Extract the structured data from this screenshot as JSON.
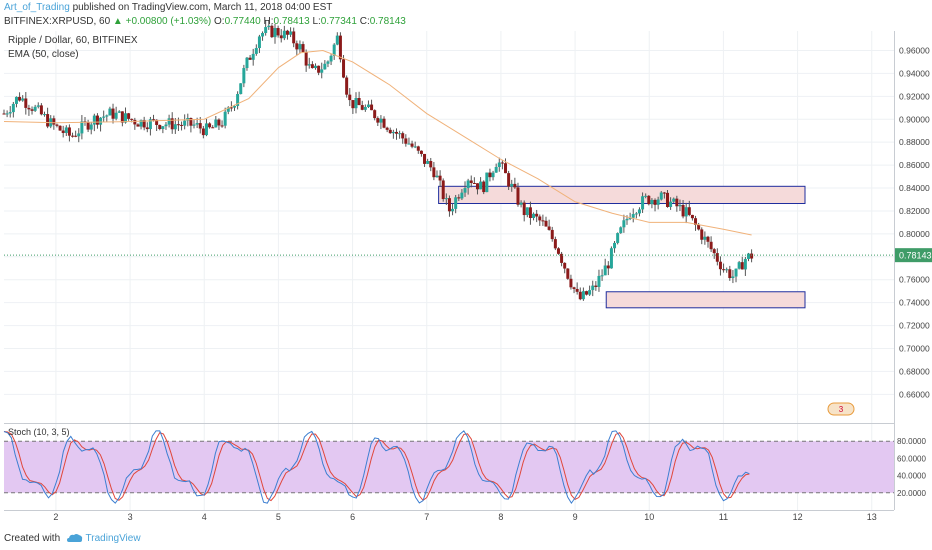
{
  "header": {
    "author": "Art_of_Trading",
    "published_text": "published on TradingView.com, March 11, 2018 04:00 EST",
    "symbol": "BITFINEX:XRPUSD, 60",
    "change": "▲ +0.00800 (+1.03%)",
    "o_label": "O:",
    "o_value": "0.77440",
    "h_label": "H:",
    "h_value": "0.78413",
    "l_label": "L:",
    "l_value": "0.77341",
    "c_label": "C:",
    "c_value": "0.78143"
  },
  "footer": {
    "created_with": "Created with",
    "brand": "TradingView"
  },
  "colors": {
    "up": "#26a69a",
    "down": "#8b1a1a",
    "ema": "#f0b27a",
    "stoch_k": "#3d7fd1",
    "stoch_d": "#e0473b",
    "stoch_band": "#e3c8f2",
    "zone_fill": "#f5dada",
    "zone_border": "#1f2e9e",
    "price_tag": "#3f9c68"
  },
  "chart_data": [
    {
      "type": "candlestick",
      "title": "Ripple / Dollar, 60, BITFINEX",
      "indicator": "EMA (50, close)",
      "ylim": [
        0.635,
        0.977
      ],
      "y_ticks": [
        "0.96000",
        "0.94000",
        "0.92000",
        "0.90000",
        "0.88000",
        "0.86000",
        "0.84000",
        "0.82000",
        "0.80000",
        "0.78000",
        "0.76000",
        "0.74000",
        "0.72000",
        "0.70000",
        "0.68000",
        "0.66000"
      ],
      "x_ticks": [
        "2",
        "3",
        "4",
        "5",
        "6",
        "7",
        "8",
        "9",
        "10",
        "11",
        "12",
        "13"
      ],
      "last_price_label": "0.78143",
      "zones": [
        {
          "x_from": 7.16,
          "x_to": 12.1,
          "y_low": 0.8265,
          "y_high": 0.8415
        },
        {
          "x_from": 9.42,
          "x_to": 12.1,
          "y_low": 0.7355,
          "y_high": 0.7495
        }
      ],
      "events_badge": "3",
      "ohlc_path": [
        [
          1.3,
          0.905
        ],
        [
          1.5,
          0.92
        ],
        [
          1.7,
          0.91
        ],
        [
          1.95,
          0.895
        ],
        [
          2.2,
          0.885
        ],
        [
          2.5,
          0.9
        ],
        [
          2.75,
          0.905
        ],
        [
          3.1,
          0.898
        ],
        [
          3.5,
          0.896
        ],
        [
          3.85,
          0.895
        ],
        [
          4.05,
          0.89
        ],
        [
          4.25,
          0.898
        ],
        [
          4.4,
          0.915
        ],
        [
          4.55,
          0.945
        ],
        [
          4.75,
          0.975
        ],
        [
          4.95,
          0.977
        ],
        [
          5.15,
          0.972
        ],
        [
          5.3,
          0.962
        ],
        [
          5.45,
          0.94
        ],
        [
          5.65,
          0.948
        ],
        [
          5.8,
          0.972
        ],
        [
          5.95,
          0.915
        ],
        [
          6.15,
          0.91
        ],
        [
          6.35,
          0.902
        ],
        [
          6.55,
          0.89
        ],
        [
          6.75,
          0.88
        ],
        [
          6.95,
          0.865
        ],
        [
          7.1,
          0.855
        ],
        [
          7.3,
          0.82
        ],
        [
          7.55,
          0.85
        ],
        [
          7.75,
          0.84
        ],
        [
          7.95,
          0.865
        ],
        [
          8.15,
          0.84
        ],
        [
          8.3,
          0.82
        ],
        [
          8.55,
          0.81
        ],
        [
          8.75,
          0.79
        ],
        [
          8.9,
          0.765
        ],
        [
          9.05,
          0.742
        ],
        [
          9.25,
          0.752
        ],
        [
          9.45,
          0.775
        ],
        [
          9.6,
          0.8
        ],
        [
          9.75,
          0.82
        ],
        [
          9.95,
          0.83
        ],
        [
          10.15,
          0.832
        ],
        [
          10.35,
          0.825
        ],
        [
          10.5,
          0.818
        ],
        [
          10.7,
          0.8
        ],
        [
          10.85,
          0.785
        ],
        [
          11.0,
          0.77
        ],
        [
          11.15,
          0.762
        ],
        [
          11.28,
          0.778
        ],
        [
          11.38,
          0.781
        ]
      ],
      "ema_path": [
        [
          1.3,
          0.898
        ],
        [
          2.0,
          0.897
        ],
        [
          3.0,
          0.898
        ],
        [
          4.0,
          0.9
        ],
        [
          4.6,
          0.918
        ],
        [
          5.0,
          0.945
        ],
        [
          5.3,
          0.958
        ],
        [
          5.6,
          0.96
        ],
        [
          6.0,
          0.95
        ],
        [
          6.5,
          0.93
        ],
        [
          7.0,
          0.905
        ],
        [
          7.5,
          0.885
        ],
        [
          8.0,
          0.865
        ],
        [
          8.5,
          0.848
        ],
        [
          9.0,
          0.828
        ],
        [
          9.5,
          0.818
        ],
        [
          10.0,
          0.81
        ],
        [
          10.5,
          0.81
        ],
        [
          11.0,
          0.804
        ],
        [
          11.38,
          0.799
        ]
      ]
    },
    {
      "type": "line",
      "title": "Stoch (10, 3, 5)",
      "ylim": [
        0,
        100
      ],
      "y_ticks": [
        "80.0000",
        "60.0000",
        "40.0000",
        "20.0000"
      ],
      "band": [
        20,
        80
      ],
      "series": []
    }
  ]
}
